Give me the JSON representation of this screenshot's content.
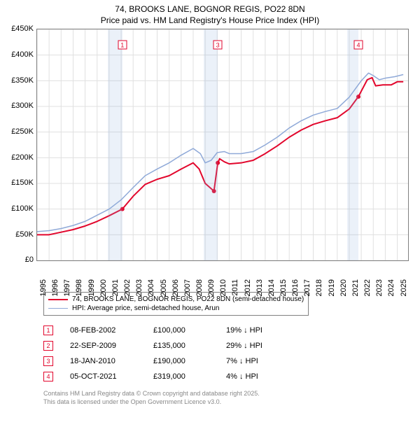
{
  "title_line1": "74, BROOKS LANE, BOGNOR REGIS, PO22 8DN",
  "title_line2": "Price paid vs. HM Land Registry's House Price Index (HPI)",
  "chart": {
    "type": "line",
    "x_range": [
      1995,
      2025.9
    ],
    "xticks": [
      1995,
      1996,
      1997,
      1998,
      1999,
      2000,
      2001,
      2002,
      2003,
      2004,
      2005,
      2006,
      2007,
      2008,
      2009,
      2010,
      2011,
      2012,
      2013,
      2014,
      2015,
      2016,
      2017,
      2018,
      2019,
      2020,
      2021,
      2022,
      2023,
      2024,
      2025
    ],
    "y_range": [
      0,
      450000
    ],
    "yticks": [
      0,
      50000,
      100000,
      150000,
      200000,
      250000,
      300000,
      350000,
      400000,
      450000
    ],
    "yticklabels": [
      "£0",
      "£50K",
      "£100K",
      "£150K",
      "£200K",
      "£250K",
      "£300K",
      "£350K",
      "£400K",
      "£450K"
    ],
    "grid_color_major": "#e0e0e0",
    "background": "#ffffff",
    "border_color": "#808080",
    "series": [
      {
        "name": "74, BROOKS LANE, BOGNOR REGIS, PO22 8DN (semi-detached house)",
        "color": "#e2062c",
        "width": 2,
        "data": [
          [
            1995.0,
            50000
          ],
          [
            1996.0,
            50000
          ],
          [
            1997.0,
            55000
          ],
          [
            1998.0,
            60000
          ],
          [
            1999.0,
            67000
          ],
          [
            2000.0,
            76000
          ],
          [
            2001.0,
            87000
          ],
          [
            2002.1,
            100000
          ],
          [
            2003.0,
            125000
          ],
          [
            2004.0,
            148000
          ],
          [
            2005.0,
            158000
          ],
          [
            2006.0,
            165000
          ],
          [
            2007.0,
            178000
          ],
          [
            2008.0,
            190000
          ],
          [
            2008.5,
            178000
          ],
          [
            2009.0,
            150000
          ],
          [
            2009.73,
            135000
          ],
          [
            2010.05,
            190000
          ],
          [
            2010.2,
            198000
          ],
          [
            2010.6,
            192000
          ],
          [
            2011.0,
            188000
          ],
          [
            2012.0,
            190000
          ],
          [
            2013.0,
            195000
          ],
          [
            2014.0,
            208000
          ],
          [
            2015.0,
            223000
          ],
          [
            2016.0,
            240000
          ],
          [
            2017.0,
            254000
          ],
          [
            2018.0,
            265000
          ],
          [
            2019.0,
            272000
          ],
          [
            2020.0,
            278000
          ],
          [
            2021.0,
            295000
          ],
          [
            2021.76,
            319000
          ],
          [
            2022.5,
            352000
          ],
          [
            2022.9,
            356000
          ],
          [
            2023.2,
            340000
          ],
          [
            2023.8,
            342000
          ],
          [
            2024.5,
            342000
          ],
          [
            2025.0,
            348000
          ],
          [
            2025.5,
            348000
          ]
        ]
      },
      {
        "name": "HPI: Average price, semi-detached house, Arun",
        "color": "#8fa9d8",
        "width": 1.5,
        "data": [
          [
            1995.0,
            56000
          ],
          [
            1996.0,
            58000
          ],
          [
            1997.0,
            62000
          ],
          [
            1998.0,
            68000
          ],
          [
            1999.0,
            76000
          ],
          [
            2000.0,
            88000
          ],
          [
            2001.0,
            100000
          ],
          [
            2002.0,
            118000
          ],
          [
            2003.0,
            142000
          ],
          [
            2004.0,
            165000
          ],
          [
            2005.0,
            178000
          ],
          [
            2006.0,
            190000
          ],
          [
            2007.0,
            205000
          ],
          [
            2008.0,
            218000
          ],
          [
            2008.6,
            208000
          ],
          [
            2009.0,
            190000
          ],
          [
            2009.5,
            195000
          ],
          [
            2010.0,
            210000
          ],
          [
            2010.6,
            212000
          ],
          [
            2011.0,
            208000
          ],
          [
            2012.0,
            208000
          ],
          [
            2013.0,
            212000
          ],
          [
            2014.0,
            225000
          ],
          [
            2015.0,
            240000
          ],
          [
            2016.0,
            258000
          ],
          [
            2017.0,
            272000
          ],
          [
            2018.0,
            283000
          ],
          [
            2019.0,
            290000
          ],
          [
            2020.0,
            296000
          ],
          [
            2021.0,
            318000
          ],
          [
            2022.0,
            350000
          ],
          [
            2022.6,
            365000
          ],
          [
            2023.0,
            360000
          ],
          [
            2023.5,
            352000
          ],
          [
            2024.0,
            355000
          ],
          [
            2024.8,
            358000
          ],
          [
            2025.5,
            362000
          ]
        ]
      }
    ],
    "shaded_ranges": [
      [
        2000.9,
        2002.1
      ],
      [
        2008.9,
        2010.05
      ],
      [
        2020.8,
        2021.76
      ]
    ],
    "shade_color": "rgba(143,177,224,0.18)",
    "sale_markers": [
      {
        "n": "1",
        "x": 2002.1,
        "y_box": 420000,
        "y_dot": 100000
      },
      {
        "n": "2",
        "x": 2009.73,
        "y_box": null,
        "y_dot": 135000
      },
      {
        "n": "3",
        "x": 2010.05,
        "y_box": 420000,
        "y_dot": 190000
      },
      {
        "n": "4",
        "x": 2021.76,
        "y_box": 420000,
        "y_dot": 319000
      }
    ],
    "marker_color": "#e2062c",
    "dot_radius": 3
  },
  "legend": [
    {
      "color": "#e2062c",
      "width": 2,
      "label": "74, BROOKS LANE, BOGNOR REGIS, PO22 8DN (semi-detached house)"
    },
    {
      "color": "#8fa9d8",
      "width": 1.5,
      "label": "HPI: Average price, semi-detached house, Arun"
    }
  ],
  "sales": [
    {
      "n": "1",
      "date": "08-FEB-2002",
      "price": "£100,000",
      "diff": "19% ↓ HPI"
    },
    {
      "n": "2",
      "date": "22-SEP-2009",
      "price": "£135,000",
      "diff": "29% ↓ HPI"
    },
    {
      "n": "3",
      "date": "18-JAN-2010",
      "price": "£190,000",
      "diff": "7% ↓ HPI"
    },
    {
      "n": "4",
      "date": "05-OCT-2021",
      "price": "£319,000",
      "diff": "4% ↓ HPI"
    }
  ],
  "footer_line1": "Contains HM Land Registry data © Crown copyright and database right 2025.",
  "footer_line2": "This data is licensed under the Open Government Licence v3.0."
}
